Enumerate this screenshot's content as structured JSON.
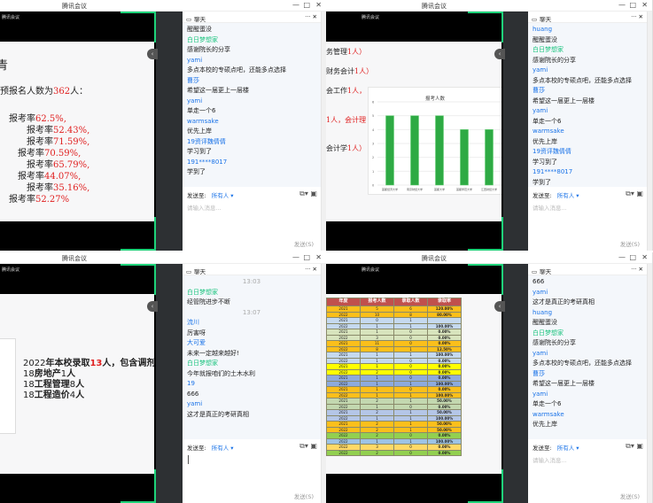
{
  "app_title": "腾讯会议",
  "meeting_badge": "腾讯会议",
  "colors": {
    "accent": "#1ed37a",
    "name_blue": "#1a73e8",
    "name_green": "#19c37d",
    "highlight": "#e02020",
    "bar": "#2eaa44"
  },
  "chat": {
    "header": "聊天",
    "send_to_label": "发送至:",
    "send_to_target": "所有人 ▾",
    "placeholder": "请输入消息...",
    "send_button": "发送(S)"
  },
  "windows": [
    {
      "slide": {
        "heading": "青",
        "intro": [
          "预报名人数为",
          "362",
          "人："
        ],
        "rates": [
          [
            "报考率",
            "62.5%,"
          ],
          [
            "报考率",
            "52.43%,"
          ],
          [
            "报考率",
            "71.59%,"
          ],
          [
            "报考率",
            "70.59%,"
          ],
          [
            "报考率",
            "65.79%,"
          ],
          [
            "报考率",
            "44.07%,"
          ],
          [
            "报考率",
            "35.16%,"
          ],
          [
            "报考率",
            "52.27%"
          ]
        ]
      },
      "messages": [
        {
          "text": "醒醒蛋没"
        },
        {
          "name": "白日梦想家",
          "color": "green",
          "text": "感谢院长的分享"
        },
        {
          "name": "yami",
          "text": "多点本校的专硕点吧，还能多点选择"
        },
        {
          "name": "曹莎",
          "text": "希望这一届更上一层楼"
        },
        {
          "name": "yami",
          "text": "单走一个6"
        },
        {
          "name": "warmsake",
          "text": "优先上岸"
        },
        {
          "name": "19资评魏倩倩",
          "text": "学习到了"
        },
        {
          "name": "191****8017",
          "text": "学到了"
        }
      ]
    },
    {
      "slide": {
        "lines": [
          [
            "务管理",
            "1人）"
          ],
          [
            "财务会计",
            "1人）"
          ],
          [
            "会工作",
            "1人，"
          ],
          [
            "",
            "1人，会计理"
          ],
          [
            "会计学",
            "1人）"
          ]
        ]
      },
      "messages": [
        {
          "name": "huang",
          "text": "醒醒蛋没"
        },
        {
          "name": "白日梦想家",
          "color": "green",
          "text": "感谢院长的分享"
        },
        {
          "name": "yami",
          "text": "多点本校的专硕点吧，还能多点选择"
        },
        {
          "name": "曹莎",
          "text": "希望这一届更上一层楼"
        },
        {
          "name": "yami",
          "text": "单走一个6"
        },
        {
          "name": "warmsake",
          "text": "优先上岸"
        },
        {
          "name": "19资评魏倩倩",
          "text": "学习到了"
        },
        {
          "name": "191****8017",
          "text": "学到了"
        }
      ]
    },
    {
      "slide": {
        "lines": [
          [
            "2022",
            "年本校录取",
            "13",
            "人，包含调剂"
          ],
          [
            "18",
            "房地产",
            "1",
            "人"
          ],
          [
            "18",
            "工程管理",
            "8",
            "人"
          ],
          [
            "18",
            "工程造价",
            "4",
            "人"
          ]
        ]
      },
      "messages": [
        {
          "time": "13:03"
        },
        {
          "name": "白日梦想家",
          "color": "green",
          "text": "经管院进步不断"
        },
        {
          "time": "13:07"
        },
        {
          "name": "流川",
          "text": "厉害呀"
        },
        {
          "name": "大可爱",
          "text": "未来一定越来越好!"
        },
        {
          "name": "白日梦想家",
          "color": "green",
          "text": "今年就报咱们的土木水利"
        },
        {
          "name": "19",
          "text": "666"
        },
        {
          "name": "yami",
          "text": "这才是真正的考研真相"
        }
      ]
    },
    {
      "slide": {},
      "messages": [
        {
          "text": "666"
        },
        {
          "name": "yami",
          "text": "这才是真正的考研真相"
        },
        {
          "name": "huang",
          "text": "醒醒蛋没"
        },
        {
          "name": "白日梦想家",
          "color": "green",
          "text": "感谢院长的分享"
        },
        {
          "name": "yami",
          "text": "多点本校的专硕点吧，还能多点选择"
        },
        {
          "name": "曹莎",
          "text": "希望这一届更上一层楼"
        },
        {
          "name": "yami",
          "text": "单走一个6"
        },
        {
          "name": "warmsake",
          "text": "优先上岸"
        }
      ]
    }
  ],
  "chart_data": {
    "type": "bar",
    "title": "报考人数",
    "categories": [
      "首都经济大学",
      "南京财经大学",
      "首都大学",
      "首都师范大学",
      "江西财经大学"
    ],
    "values": [
      5,
      5,
      5,
      4,
      4
    ],
    "ylim": [
      0,
      6
    ],
    "yticks": [
      0,
      1,
      2,
      3,
      4,
      5,
      6
    ],
    "grid": true
  },
  "table": {
    "headers": [
      "年度",
      "报考人数",
      "录取人数",
      "录取率"
    ],
    "rows": [
      [
        "2021",
        "5",
        "6",
        "120.00%",
        "#fbbf1b"
      ],
      [
        "2022",
        "10",
        "8",
        "80.00%",
        "#fbbf1b"
      ],
      [
        "2021",
        "0",
        "1",
        "",
        "#c5d9ef"
      ],
      [
        "2022",
        "1",
        "1",
        "100.00%",
        "#c5d9ef"
      ],
      [
        "2021",
        "1",
        "0",
        "0.00%",
        "#d8e4bd"
      ],
      [
        "2022",
        "3",
        "0",
        "0.00%",
        "#d8e4bd"
      ],
      [
        "2021",
        "11",
        "0",
        "0.00%",
        "#fbbf1b"
      ],
      [
        "2022",
        "8",
        "1",
        "12.50%",
        "#fbbf1b"
      ],
      [
        "2021",
        "1",
        "1",
        "100.00%",
        "#c5d9ef"
      ],
      [
        "2022",
        "1",
        "0",
        "0.00%",
        "#c5d9ef"
      ],
      [
        "2021",
        "1",
        "0",
        "0.00%",
        "#ffff00"
      ],
      [
        "2022",
        "2",
        "0",
        "0.00%",
        "#ffff00"
      ],
      [
        "2021",
        "1",
        "0",
        "0.00%",
        "#8eaadc"
      ],
      [
        "2022",
        "1",
        "1",
        "100.00%",
        "#8eaadc"
      ],
      [
        "2021",
        "1",
        "0",
        "0.00%",
        "#fbbf1b"
      ],
      [
        "2022",
        "1",
        "1",
        "100.00%",
        "#fbbf1b"
      ],
      [
        "2021",
        "2",
        "1",
        "50.00%",
        "#c3d8b0"
      ],
      [
        "2022",
        "1",
        "0",
        "0.00%",
        "#c3d8b0"
      ],
      [
        "2021",
        "2",
        "1",
        "50.00%",
        "#b4c6e7"
      ],
      [
        "2022",
        "1",
        "1",
        "100.00%",
        "#b4c6e7"
      ],
      [
        "2021",
        "2",
        "1",
        "50.00%",
        "#fbbf1b"
      ],
      [
        "2022",
        "2",
        "1",
        "50.00%",
        "#fbbf1b"
      ],
      [
        "2022",
        "2",
        "0",
        "0.00%",
        "#92d050"
      ],
      [
        "2022",
        "1",
        "1",
        "100.00%",
        "#9dc3e6"
      ],
      [
        "2022",
        "3",
        "0",
        "0.00%",
        "#ffd966"
      ],
      [
        "2022",
        "2",
        "0",
        "0.00%",
        "#92d050"
      ]
    ]
  }
}
